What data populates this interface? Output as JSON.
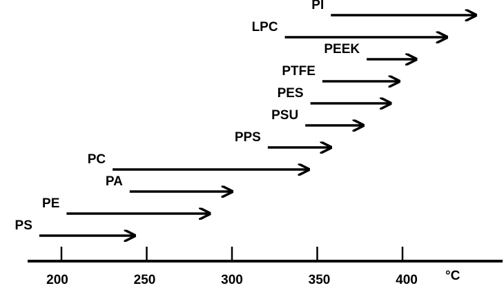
{
  "chart_data": {
    "type": "range-arrows",
    "title": "",
    "xlabel": "",
    "ylabel": "",
    "unit": "°C",
    "x_ticks": [
      200,
      250,
      300,
      350,
      400
    ],
    "xlim": [
      180,
      460
    ],
    "grid": false,
    "series": [
      {
        "label": "PS",
        "start": 187,
        "end": 243
      },
      {
        "label": "PE",
        "start": 203,
        "end": 287
      },
      {
        "label": "PA",
        "start": 240,
        "end": 300
      },
      {
        "label": "PC",
        "start": 230,
        "end": 345
      },
      {
        "label": "PPS",
        "start": 321,
        "end": 358
      },
      {
        "label": "PSU",
        "start": 343,
        "end": 377
      },
      {
        "label": "PES",
        "start": 346,
        "end": 393
      },
      {
        "label": "PTFE",
        "start": 353,
        "end": 398
      },
      {
        "label": "PEEK",
        "start": 379,
        "end": 408
      },
      {
        "label": "LPC",
        "start": 331,
        "end": 426
      },
      {
        "label": "PI",
        "start": 358,
        "end": 443
      }
    ]
  }
}
